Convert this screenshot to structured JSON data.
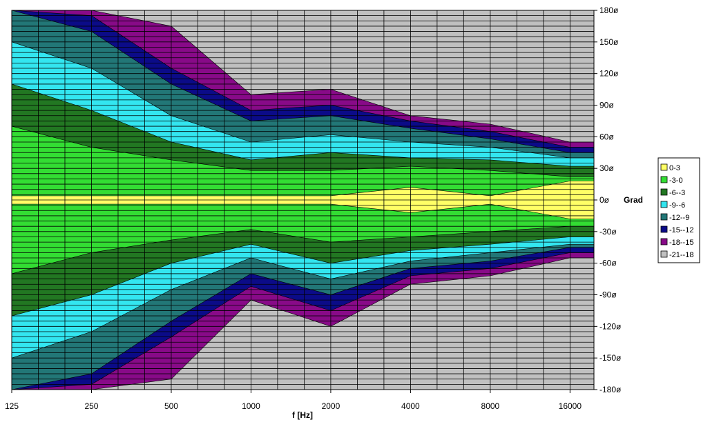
{
  "chart_data": {
    "type": "heatmap",
    "subtype": "filled-contour",
    "title": "",
    "xlabel": "f [Hz]",
    "ylabel": "Grad",
    "x_scale": "log2",
    "x_ticks": [
      "125",
      "250",
      "500",
      "1000",
      "2000",
      "4000",
      "8000",
      "16000"
    ],
    "y_ticks": [
      "180ø",
      "150ø",
      "120ø",
      "90ø",
      "60ø",
      "30ø",
      "0ø",
      "-30ø",
      "-60ø",
      "-90ø",
      "-120ø",
      "-150ø",
      "-180ø"
    ],
    "ylim": [
      -180,
      180
    ],
    "grid": true,
    "legend_position": "right",
    "legend": [
      {
        "label": "0-3",
        "color": "#ffff66"
      },
      {
        "label": "-3-0",
        "color": "#33dd33"
      },
      {
        "label": "-6--3",
        "color": "#227722"
      },
      {
        "label": "-9--6",
        "color": "#33e6f0"
      },
      {
        "label": "-12--9",
        "color": "#227777"
      },
      {
        "label": "-15--12",
        "color": "#0b0b88"
      },
      {
        "label": "-18--15",
        "color": "#880a88"
      },
      {
        "label": "-21--18",
        "color": "#c0c0c0"
      }
    ],
    "frequencies_hz": [
      125,
      250,
      500,
      1000,
      2000,
      4000,
      8000,
      16000
    ],
    "contours_upper_deg": {
      "note": "upper boundary angle (deg, positive side) of each level region at each frequency",
      "0-3": [
        4,
        4,
        4,
        4,
        4,
        12,
        4,
        18
      ],
      "-3-0": [
        70,
        50,
        38,
        28,
        28,
        32,
        28,
        22
      ],
      "-6--3": [
        110,
        85,
        55,
        38,
        45,
        40,
        38,
        32
      ],
      "-9--6": [
        150,
        125,
        80,
        55,
        62,
        55,
        50,
        40
      ],
      "-12--9": [
        180,
        160,
        110,
        75,
        80,
        68,
        58,
        45
      ],
      "-15--12": [
        180,
        175,
        125,
        85,
        90,
        75,
        65,
        50
      ],
      "-18--15": [
        180,
        180,
        165,
        100,
        105,
        80,
        72,
        55
      ]
    },
    "contours_lower_deg": {
      "note": "lower boundary angle (deg, negative side) of each level region at each frequency",
      "0-3": [
        -4,
        -4,
        -4,
        -4,
        -4,
        -12,
        -4,
        -18
      ],
      "-3-0": [
        -70,
        -50,
        -38,
        -28,
        -40,
        -35,
        -30,
        -25
      ],
      "-6--3": [
        -110,
        -90,
        -60,
        -42,
        -60,
        -48,
        -42,
        -35
      ],
      "-9--6": [
        -150,
        -125,
        -85,
        -55,
        -75,
        -58,
        -50,
        -42
      ],
      "-12--9": [
        -180,
        -165,
        -115,
        -70,
        -90,
        -65,
        -58,
        -45
      ],
      "-15--12": [
        -180,
        -175,
        -130,
        -82,
        -105,
        -72,
        -65,
        -50
      ],
      "-18--15": [
        -180,
        -180,
        -170,
        -95,
        -120,
        -80,
        -72,
        -55
      ]
    }
  }
}
